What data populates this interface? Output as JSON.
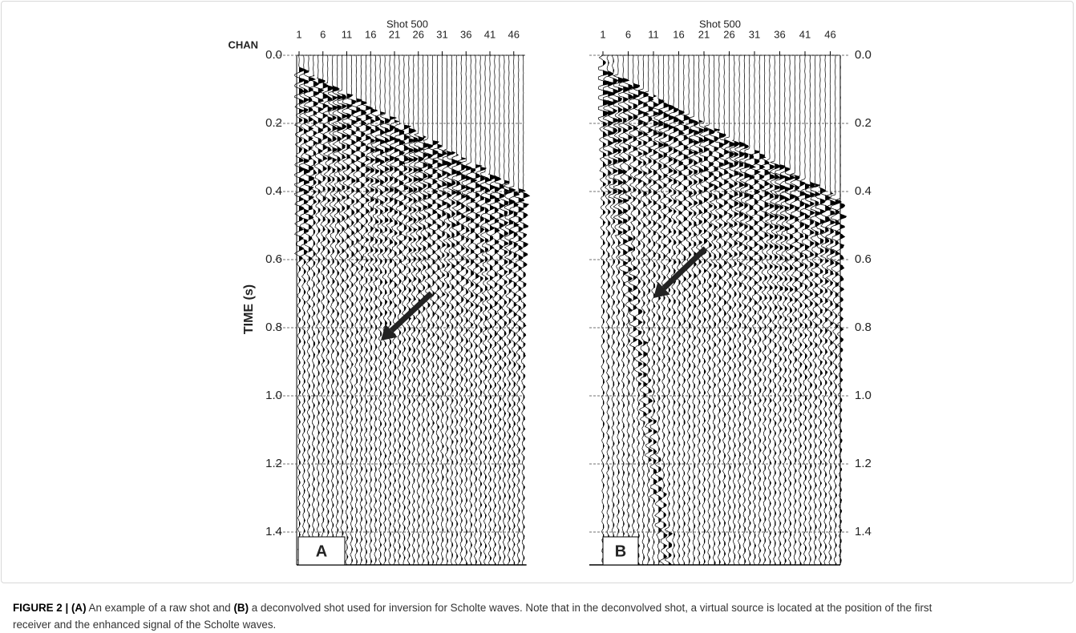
{
  "figure": {
    "panels": [
      {
        "title": "Shot 500",
        "channel_label": "CHAN",
        "channel_ticks": [
          1,
          6,
          11,
          16,
          21,
          26,
          31,
          36,
          41,
          46
        ],
        "time_label": "TIME (s)",
        "time_ticks": [
          "0.0",
          "0.2",
          "0.4",
          "0.6",
          "0.8",
          "1.0",
          "1.2",
          "1.4"
        ],
        "letter": "A"
      },
      {
        "title": "Shot 500",
        "channel_ticks": [
          1,
          6,
          11,
          16,
          21,
          26,
          31,
          36,
          41,
          46
        ],
        "time_ticks": [
          "0.0",
          "0.2",
          "0.4",
          "0.6",
          "0.8",
          "1.0",
          "1.2",
          "1.4"
        ],
        "letter": "B"
      }
    ]
  },
  "caption": {
    "label": "FIGURE 2 |",
    "a": "(A)",
    "text1": "An example of a raw shot and",
    "b": "(B)",
    "text2": "a deconvolved shot used for inversion for Scholte waves. Note that in the deconvolved shot, a virtual source is located at the position of the first receiver and the enhanced signal of the Scholte waves."
  }
}
